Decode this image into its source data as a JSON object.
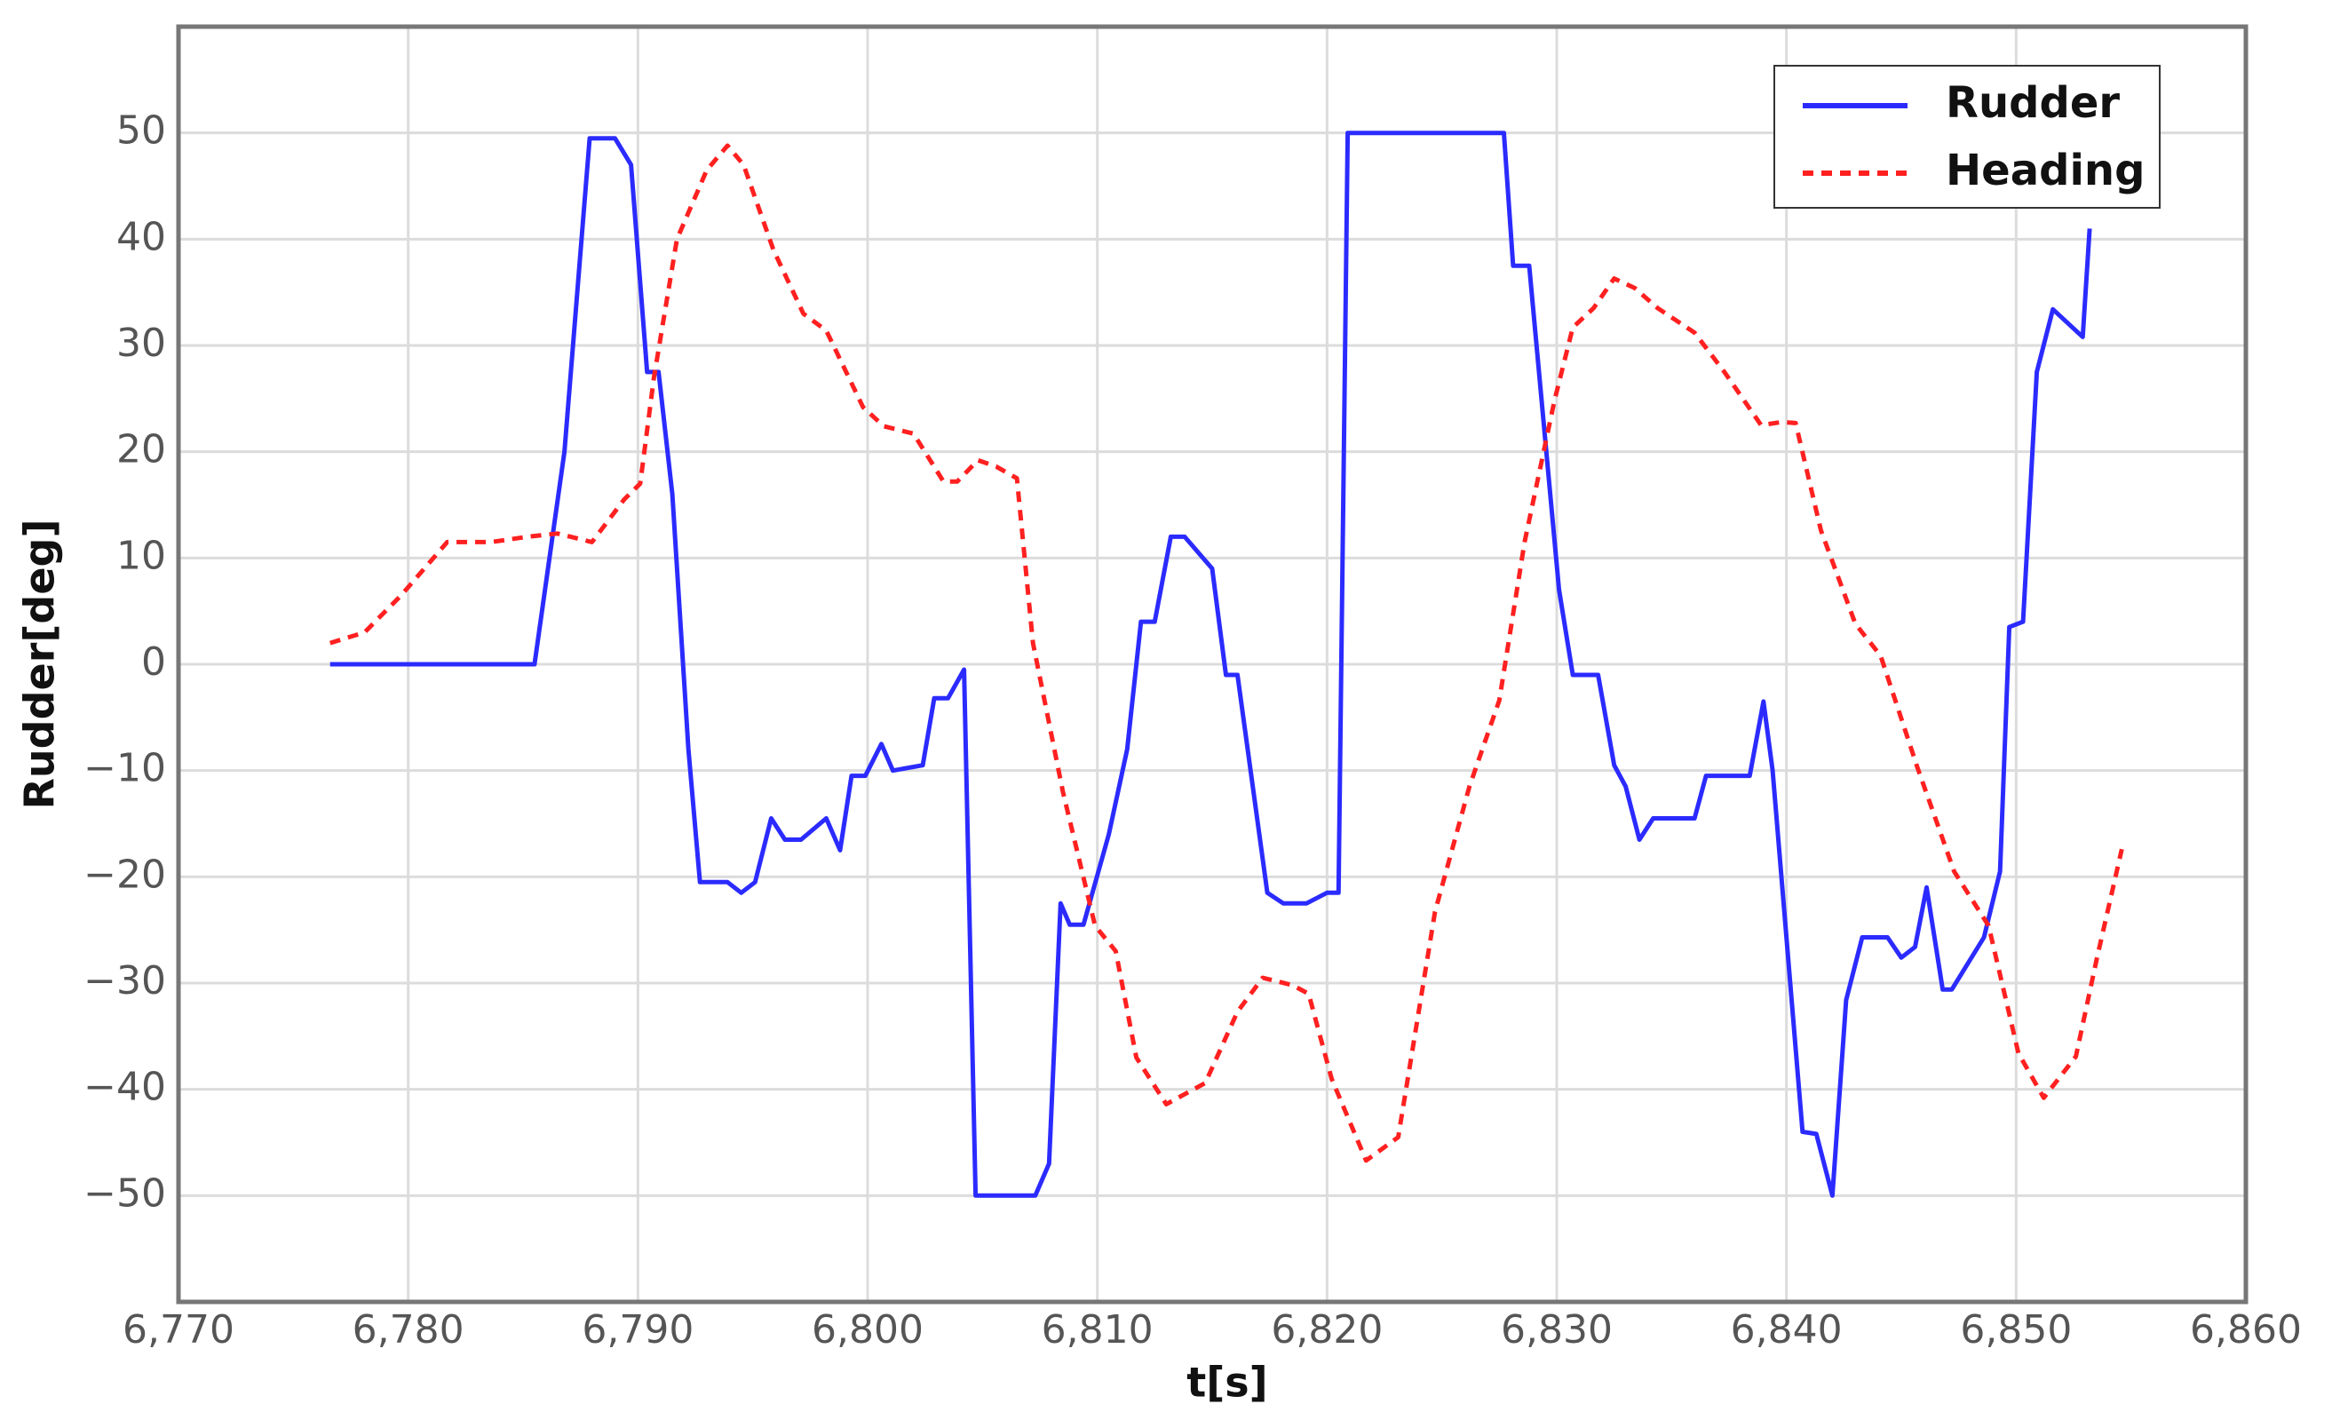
{
  "chart_data": {
    "type": "line",
    "xlabel": "t[s]",
    "ylabel": "Rudder[deg]",
    "xlim": [
      6770,
      6860
    ],
    "ylim": [
      -60,
      60
    ],
    "xticks": [
      {
        "value": 6770,
        "label": "6,770"
      },
      {
        "value": 6780,
        "label": "6,780"
      },
      {
        "value": 6790,
        "label": "6,790"
      },
      {
        "value": 6800,
        "label": "6,800"
      },
      {
        "value": 6810,
        "label": "6,810"
      },
      {
        "value": 6820,
        "label": "6,820"
      },
      {
        "value": 6830,
        "label": "6,830"
      },
      {
        "value": 6840,
        "label": "6,840"
      },
      {
        "value": 6850,
        "label": "6,850"
      },
      {
        "value": 6860,
        "label": "6,860"
      }
    ],
    "yticks": [
      {
        "value": -50,
        "label": "−50"
      },
      {
        "value": -40,
        "label": "−40"
      },
      {
        "value": -30,
        "label": "−30"
      },
      {
        "value": -20,
        "label": "−20"
      },
      {
        "value": -10,
        "label": "−10"
      },
      0,
      10,
      20,
      30,
      40,
      50
    ],
    "grid": true,
    "legend": "upper right",
    "series": [
      {
        "name": "Rudder",
        "color": "#2b2bff",
        "linestyle": "solid",
        "x": [
          6776.6,
          6785.5,
          6786.8,
          6787.9,
          6789.0,
          6789.7,
          6790.4,
          6790.9,
          6791.5,
          6792.2,
          6792.7,
          6793.9,
          6794.5,
          6795.1,
          6795.8,
          6796.4,
          6797.1,
          6798.2,
          6798.8,
          6799.3,
          6799.9,
          6800.6,
          6801.1,
          6802.4,
          6802.9,
          6803.5,
          6804.2,
          6804.7,
          6807.3,
          6807.9,
          6808.4,
          6808.8,
          6809.4,
          6810.5,
          6811.3,
          6811.9,
          6812.5,
          6813.2,
          6813.8,
          6815.0,
          6815.6,
          6816.1,
          6817.4,
          6818.1,
          6819.1,
          6820.0,
          6820.5,
          6820.9,
          6827.7,
          6828.1,
          6828.8,
          6830.1,
          6830.7,
          6831.8,
          6832.5,
          6833.0,
          6833.6,
          6834.2,
          6836.0,
          6836.5,
          6838.4,
          6839.0,
          6839.4,
          6840.7,
          6841.3,
          6842.0,
          6842.6,
          6843.3,
          6844.4,
          6845.0,
          6845.6,
          6846.1,
          6846.8,
          6847.2,
          6848.6,
          6849.3,
          6849.7,
          6850.3,
          6850.9,
          6851.6,
          6852.9,
          6853.2
        ],
        "values": [
          0,
          0,
          20,
          49.5,
          49.5,
          47,
          27.5,
          27.5,
          16,
          -8,
          -20.5,
          -20.5,
          -21.5,
          -20.5,
          -14.5,
          -16.5,
          -16.5,
          -14.5,
          -17.5,
          -10.5,
          -10.5,
          -7.5,
          -10,
          -9.5,
          -3.2,
          -3.2,
          -0.5,
          -50,
          -50,
          -47,
          -22.5,
          -24.5,
          -24.5,
          -16,
          -8,
          4,
          4,
          12,
          12,
          9,
          -1,
          -1,
          -21.5,
          -22.5,
          -22.5,
          -21.5,
          -21.5,
          50,
          50,
          37.5,
          37.5,
          7,
          -1,
          -1,
          -9.5,
          -11.5,
          -16.5,
          -14.5,
          -14.5,
          -10.5,
          -10.5,
          -3.5,
          -10,
          -44,
          -44.2,
          -50,
          -31.6,
          -25.7,
          -25.7,
          -27.6,
          -26.6,
          -21,
          -30.6,
          -30.6,
          -25.7,
          -19.5,
          3.5,
          4,
          27.5,
          33.4,
          30.8,
          41
        ]
      },
      {
        "name": "Heading",
        "color": "#ff2020",
        "linestyle": "dashed",
        "x": [
          6776.6,
          6778.1,
          6779.7,
          6781.7,
          6783.6,
          6785.2,
          6786.5,
          6788.0,
          6789.4,
          6790.1,
          6790.7,
          6791.7,
          6793.0,
          6793.9,
          6794.6,
          6795.9,
          6797.2,
          6798.2,
          6799.8,
          6800.7,
          6802.0,
          6803.3,
          6803.9,
          6804.8,
          6805.6,
          6806.5,
          6807.2,
          6808.5,
          6809.9,
          6810.8,
          6811.7,
          6813.0,
          6814.7,
          6816.1,
          6817.2,
          6818.5,
          6819.2,
          6820.2,
          6821.7,
          6823.1,
          6824.7,
          6826.2,
          6827.5,
          6828.6,
          6829.9,
          6830.7,
          6831.6,
          6832.5,
          6833.4,
          6834.4,
          6836.0,
          6837.3,
          6838.9,
          6839.8,
          6840.4,
          6841.5,
          6843.0,
          6844.1,
          6845.7,
          6847.3,
          6848.8,
          6850.1,
          6851.2,
          6852.6,
          6853.5,
          6854.6
        ],
        "values": [
          2,
          3,
          6.5,
          11.5,
          11.5,
          12,
          12.3,
          11.5,
          15.5,
          17,
          27,
          40,
          46.5,
          48.8,
          47,
          39,
          33,
          31.4,
          24.2,
          22.4,
          21.7,
          17.2,
          17.2,
          19.2,
          18.6,
          17.5,
          2,
          -12,
          -24.6,
          -27,
          -37,
          -41.4,
          -39.4,
          -32.7,
          -29.5,
          -30.2,
          -31,
          -39,
          -46.7,
          -44.5,
          -23.3,
          -11.5,
          -3.4,
          11.5,
          24.8,
          31.7,
          33.5,
          36.3,
          35.4,
          33.5,
          31.2,
          27.5,
          22.5,
          22.8,
          22.7,
          12.6,
          3.8,
          0.8,
          -9.7,
          -19.5,
          -24.6,
          -36.6,
          -40.8,
          -36.9,
          -27.8,
          -17.4
        ]
      }
    ]
  }
}
